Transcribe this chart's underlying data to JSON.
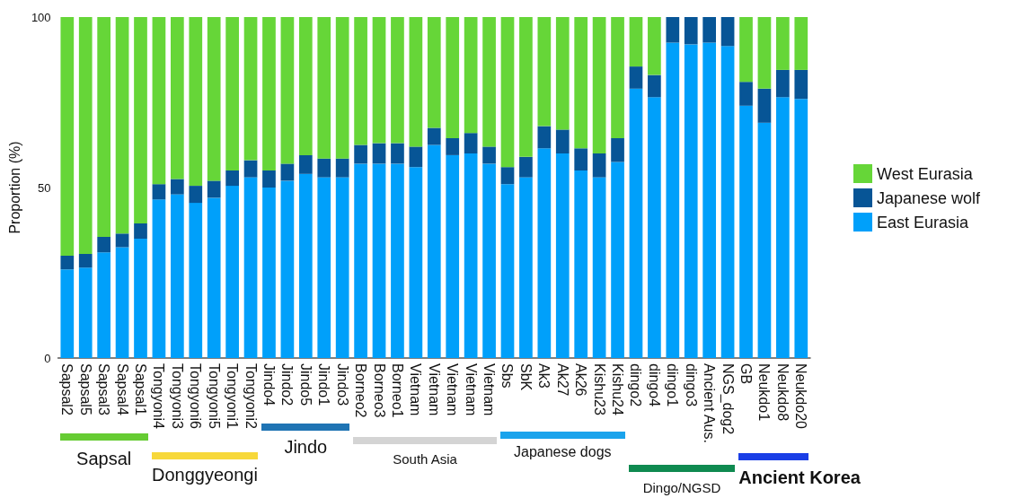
{
  "chart_data": {
    "type": "bar",
    "stacked": true,
    "ylabel": "Proportion (%)",
    "ylim": [
      0,
      100
    ],
    "yticks": [
      0,
      50,
      100
    ],
    "grid": false,
    "legend": "right",
    "categories": [
      "Sapsal2",
      "Sapsal5",
      "Sapsal3",
      "Sapsal4",
      "Sapsal1",
      "Tongyoni4",
      "Tongyoni3",
      "Tongyoni6",
      "Tongyoni5",
      "Tongyoni1",
      "Tongyoni2",
      "Jindo4",
      "Jindo2",
      "Jindo5",
      "Jindo1",
      "Jindo3",
      "Borneo2",
      "Borneo3",
      "Borneo1",
      "Vietnam",
      "Vietnam",
      "Vietnam",
      "Vietnam",
      "Vietnam",
      "Sbs",
      "SbK",
      "Ak3",
      "Ak27",
      "Ak26",
      "Kishu23",
      "Kishu24",
      "dingo2",
      "dingo4",
      "dingo1",
      "dingo3",
      "Ancient Aus.",
      "NGS_dog2",
      "GB",
      "Neukdo1",
      "Neukdo8",
      "Neukdo20"
    ],
    "series": [
      {
        "name": "East Eurasia",
        "color": "#00a0fa",
        "values": [
          26,
          26.5,
          31,
          32.5,
          35,
          46.5,
          48,
          45.5,
          47,
          50.5,
          53,
          50,
          52,
          54,
          53,
          53,
          57,
          57,
          57,
          56,
          62.5,
          59.5,
          60,
          57,
          51,
          53,
          61.5,
          60,
          55,
          53,
          57.5,
          79,
          76.5,
          92.5,
          92,
          92.5,
          91.5,
          74,
          69,
          76.5,
          76
        ]
      },
      {
        "name": "Japanese wolf",
        "color": "#075596",
        "values": [
          4,
          4,
          4.5,
          4,
          4.5,
          4.5,
          4.5,
          5,
          5,
          4.5,
          5,
          5,
          5,
          5.5,
          5.5,
          5.5,
          5.5,
          6,
          6,
          6,
          5,
          5,
          6,
          5,
          5,
          6,
          6.5,
          7,
          6.5,
          7,
          7,
          6.5,
          6.5,
          7.5,
          8,
          7.5,
          8.5,
          7,
          10,
          8,
          8.5
        ]
      },
      {
        "name": "West Eurasia",
        "color": "#66d638",
        "values": [
          70,
          69.5,
          64.5,
          63.5,
          60.5,
          49,
          47.5,
          49.5,
          48,
          45,
          42,
          45,
          43,
          40.5,
          41.5,
          41.5,
          37.5,
          37,
          37,
          38,
          32.5,
          35.5,
          34,
          38,
          44,
          41,
          32,
          33,
          38.5,
          40,
          35.5,
          14.5,
          17,
          0,
          0,
          0,
          0,
          19,
          21,
          15.5,
          15.5
        ]
      }
    ],
    "annotations": [
      "Sapsal",
      "Donggyeongi",
      "Jindo",
      "South Asia",
      "Japanese dogs",
      "Dingo/NGSD",
      "Ancient Korea"
    ]
  }
}
